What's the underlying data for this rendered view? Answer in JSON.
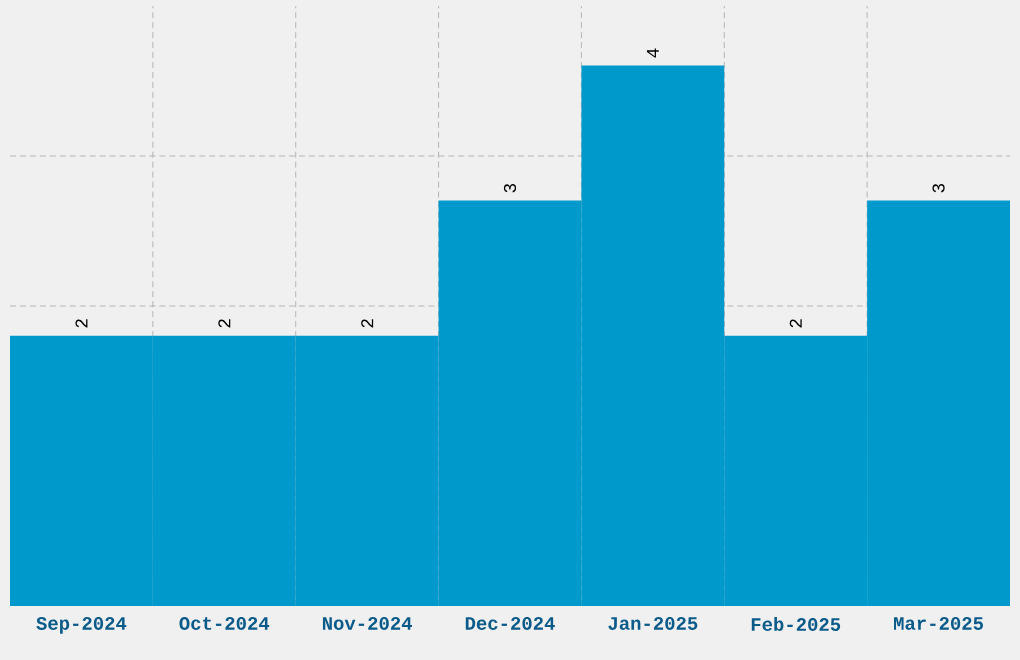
{
  "chart_data": {
    "type": "bar",
    "categories": [
      "Sep-2024",
      "Oct-2024",
      "Nov-2024",
      "Dec-2024",
      "Jan-2025",
      "Feb-2025",
      "Mar-2025"
    ],
    "values": [
      2,
      2,
      2,
      3,
      4,
      2,
      3
    ],
    "color": "#0099cc",
    "ylim": [
      0,
      4.44
    ],
    "yticks": [
      {
        "value": 1.11,
        "label": null
      },
      {
        "value": 2.22,
        "label": null
      },
      {
        "value": 3.33,
        "label": null
      }
    ],
    "grid": true,
    "data_labels": true
  }
}
